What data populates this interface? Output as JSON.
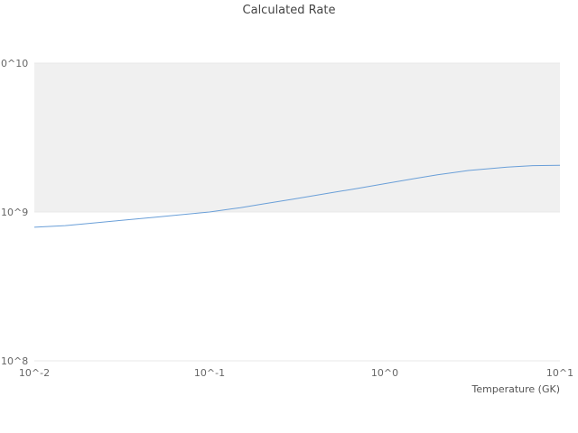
{
  "chart_data": {
    "type": "line",
    "title": "Calculated Rate",
    "xlabel": "Temperature (GK)",
    "ylabel": "",
    "xscale": "log",
    "yscale": "log",
    "xlim": [
      0.01,
      10
    ],
    "ylim": [
      100000000,
      10000000000
    ],
    "x": [
      0.01,
      0.015,
      0.02,
      0.03,
      0.05,
      0.07,
      0.1,
      0.15,
      0.2,
      0.3,
      0.5,
      0.7,
      1.0,
      1.5,
      2.0,
      3.0,
      5.0,
      7.0,
      10.0
    ],
    "series": [
      {
        "name": "Calculated Rate",
        "values": [
          790000000,
          810000000,
          835000000,
          875000000,
          925000000,
          960000000,
          1000000000,
          1070000000,
          1130000000,
          1220000000,
          1350000000,
          1440000000,
          1550000000,
          1680000000,
          1780000000,
          1900000000,
          2000000000,
          2050000000,
          2060000000
        ]
      }
    ],
    "x_ticks": [
      {
        "value": 0.01,
        "label": "10^-2"
      },
      {
        "value": 0.1,
        "label": "10^-1"
      },
      {
        "value": 1.0,
        "label": "10^0"
      },
      {
        "value": 10.0,
        "label": "10^1"
      }
    ],
    "y_ticks": [
      {
        "value": 100000000,
        "label": "10^8"
      },
      {
        "value": 1000000000,
        "label": "10^9"
      },
      {
        "value": 10000000000,
        "label": "0^10"
      }
    ],
    "legend": "none",
    "grid": "horizontal-light",
    "colors": {
      "line": "#6a9fd8",
      "band_fill": "#f0f0f0",
      "gridline": "#e8e8e8",
      "tick_text": "#666666"
    },
    "band": {
      "from": 1000000000,
      "to": 10000000000
    }
  }
}
